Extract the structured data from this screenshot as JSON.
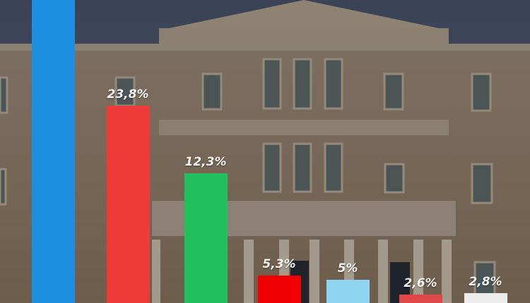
{
  "chart_data": {
    "type": "bar",
    "categories": [
      "",
      "",
      "",
      "",
      "",
      "",
      ""
    ],
    "values": [
      null,
      23.8,
      12.3,
      5.3,
      5,
      2.6,
      2.8
    ],
    "labels": [
      "",
      "23,8%",
      "12,3%",
      "5,3%",
      "5%",
      "2,6%",
      "2,8%"
    ],
    "colors": [
      "#1e8fe0",
      "#ef3a3a",
      "#22c15e",
      "#f00000",
      "#8fd4f0",
      "#e04848",
      "#ececec"
    ],
    "title": "",
    "xlabel": "",
    "ylabel": "",
    "grid": false,
    "background": "photo of the Hellenic Parliament building"
  }
}
